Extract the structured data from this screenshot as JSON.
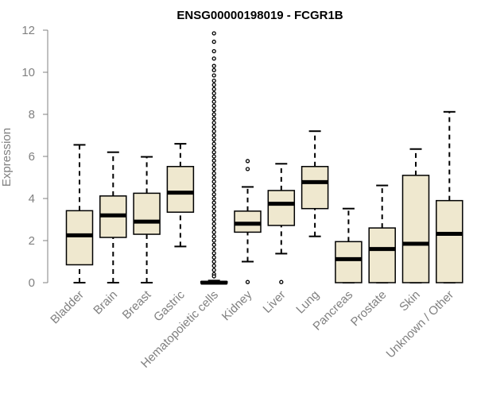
{
  "chart_data": {
    "type": "box",
    "title": "ENSG00000198019 - FCGR1B",
    "ylabel": "Expression",
    "xlabel": "",
    "ylim": [
      0,
      12
    ],
    "yticks": [
      0,
      2,
      4,
      6,
      8,
      10,
      12
    ],
    "colors": {
      "box_fill": "#efe8cf",
      "stroke": "#000000",
      "axis": "#808080"
    },
    "categories": [
      "Bladder",
      "Brain",
      "Breast",
      "Gastric",
      "Hematopoietic cells",
      "Kidney",
      "Liver",
      "Lung",
      "Pancreas",
      "Prostate",
      "Skin",
      "Unknown / Other"
    ],
    "boxes": [
      {
        "category": "Bladder",
        "whisker_low": 0.0,
        "q1": 0.85,
        "median": 2.25,
        "q3": 3.42,
        "whisker_high": 6.55,
        "outliers": []
      },
      {
        "category": "Brain",
        "whisker_low": 0.0,
        "q1": 2.15,
        "median": 3.2,
        "q3": 4.12,
        "whisker_high": 6.2,
        "outliers": []
      },
      {
        "category": "Breast",
        "whisker_low": 0.0,
        "q1": 2.3,
        "median": 2.9,
        "q3": 4.25,
        "whisker_high": 5.98,
        "outliers": []
      },
      {
        "category": "Gastric",
        "whisker_low": 1.72,
        "q1": 3.35,
        "median": 4.28,
        "q3": 5.52,
        "whisker_high": 6.6,
        "outliers": []
      },
      {
        "category": "Hematopoietic cells",
        "whisker_low": 0.0,
        "q1": 0.0,
        "median": 0.0,
        "q3": 0.05,
        "whisker_high": 0.1,
        "outliers": [
          11.85,
          11.45,
          11.0,
          10.65,
          10.3,
          10.1,
          9.85,
          9.6,
          9.4,
          9.2,
          9.0,
          8.8,
          8.6,
          8.4,
          8.2,
          8.0,
          7.8,
          7.6,
          7.4,
          7.2,
          7.0,
          6.8,
          6.6,
          6.4,
          6.2,
          6.0,
          5.8,
          5.6,
          5.4,
          5.2,
          5.0,
          4.8,
          4.6,
          4.4,
          4.2,
          4.0,
          3.8,
          3.6,
          3.4,
          3.2,
          3.0,
          2.8,
          2.6,
          2.4,
          2.2,
          2.0,
          1.8,
          1.6,
          1.4,
          1.2,
          1.0,
          0.8,
          0.6,
          0.4,
          0.3
        ]
      },
      {
        "category": "Kidney",
        "whisker_low": 1.0,
        "q1": 2.4,
        "median": 2.8,
        "q3": 3.4,
        "whisker_high": 4.55,
        "outliers": [
          5.78,
          5.4,
          0.03
        ]
      },
      {
        "category": "Liver",
        "whisker_low": 1.38,
        "q1": 2.72,
        "median": 3.75,
        "q3": 4.38,
        "whisker_high": 5.65,
        "outliers": [
          0.03
        ]
      },
      {
        "category": "Lung",
        "whisker_low": 2.2,
        "q1": 3.52,
        "median": 4.78,
        "q3": 5.52,
        "whisker_high": 7.2,
        "outliers": []
      },
      {
        "category": "Pancreas",
        "whisker_low": 0.0,
        "q1": 0.0,
        "median": 1.12,
        "q3": 1.95,
        "whisker_high": 3.52,
        "outliers": []
      },
      {
        "category": "Prostate",
        "whisker_low": 0.0,
        "q1": 0.0,
        "median": 1.6,
        "q3": 2.6,
        "whisker_high": 4.62,
        "outliers": []
      },
      {
        "category": "Skin",
        "whisker_low": 0.0,
        "q1": 0.0,
        "median": 1.85,
        "q3": 5.1,
        "whisker_high": 6.35,
        "outliers": []
      },
      {
        "category": "Unknown / Other",
        "whisker_low": 0.0,
        "q1": 0.0,
        "median": 2.32,
        "q3": 3.9,
        "whisker_high": 8.12,
        "outliers": []
      }
    ]
  }
}
